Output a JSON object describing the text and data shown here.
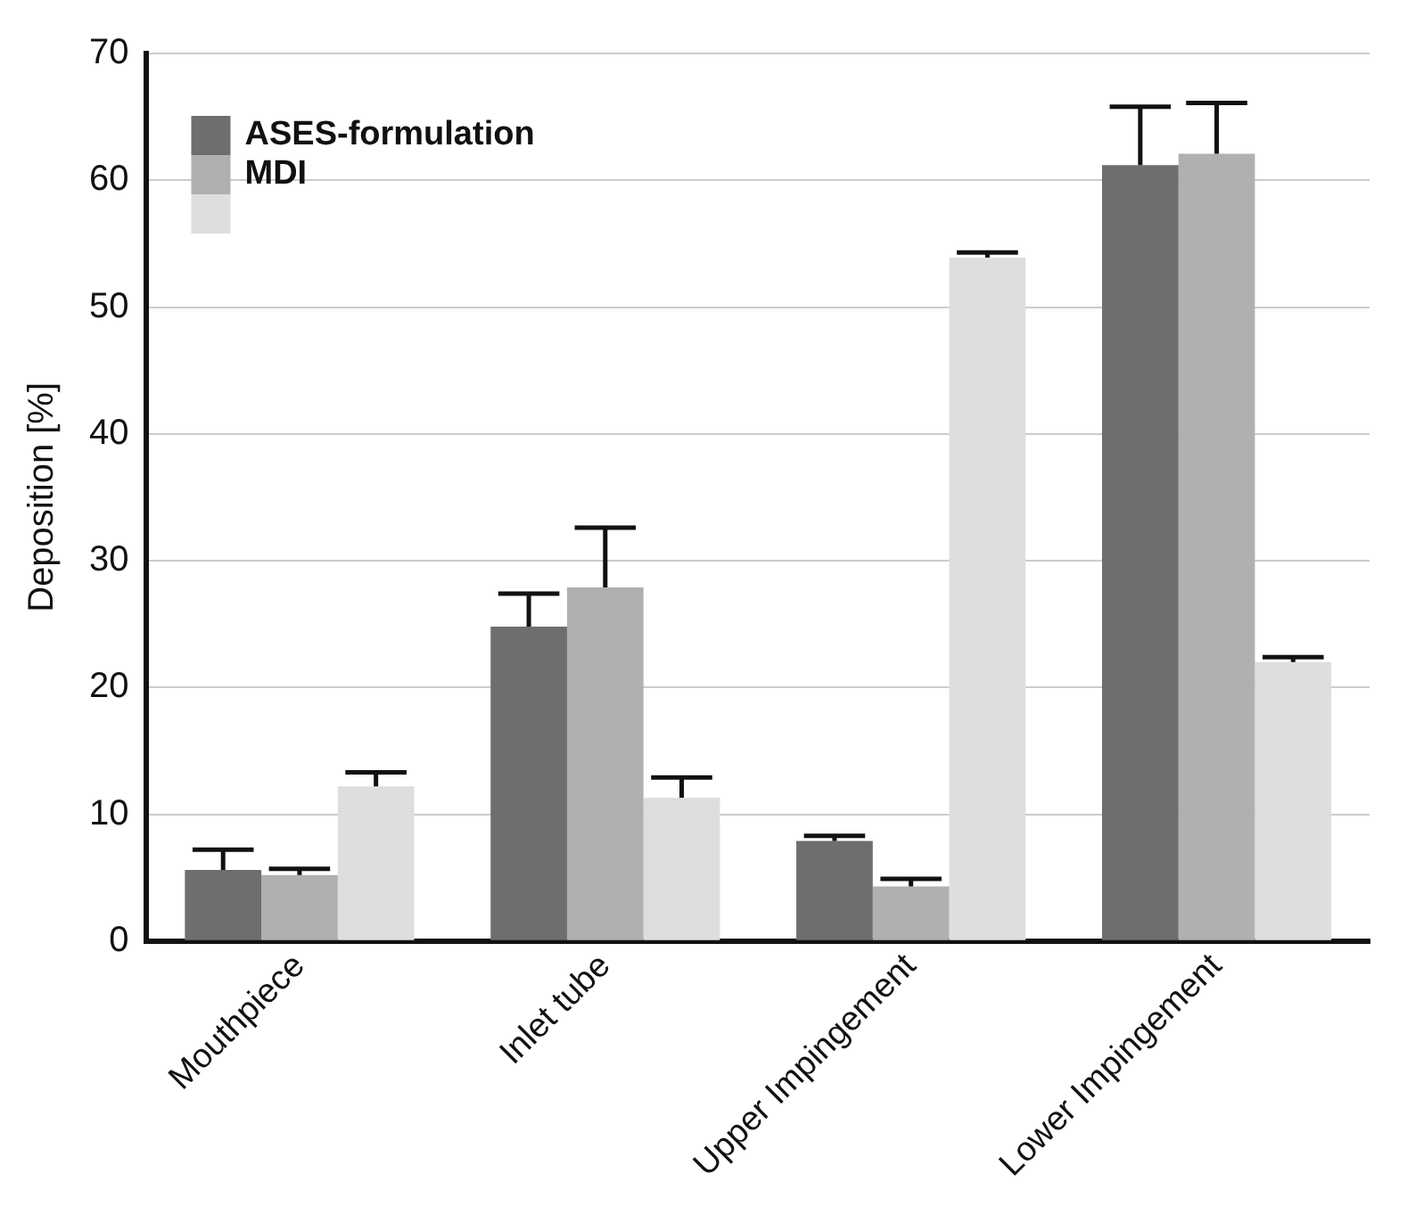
{
  "chart_data": {
    "type": "bar",
    "ylabel": "Deposition [%]",
    "categories": [
      "Mouthpiece",
      "Inlet tube",
      "Upper Impingement",
      "Lower Impingement"
    ],
    "series": [
      {
        "name": "ASES-formulation",
        "color": "#6e6e6e",
        "values": [
          5.6,
          24.8,
          7.9,
          61.2
        ],
        "errors": [
          [
            5.6,
            7.2
          ],
          [
            24.8,
            27.4
          ],
          [
            7.9,
            8.3
          ],
          [
            61.2,
            65.8
          ]
        ]
      },
      {
        "name": "MDI",
        "color": "#b0b0b0",
        "values": [
          5.2,
          27.9,
          4.3,
          62.1
        ],
        "errors": [
          [
            5.2,
            5.7
          ],
          [
            27.9,
            32.6
          ],
          [
            4.3,
            4.9
          ],
          [
            62.1,
            66.1
          ]
        ]
      },
      {
        "color": "#dedede",
        "values": [
          12.2,
          11.3,
          53.9,
          22.0
        ],
        "errors": [
          [
            12.2,
            13.3
          ],
          [
            11.3,
            12.9
          ],
          [
            53.9,
            54.3
          ],
          [
            22.0,
            22.4
          ]
        ]
      }
    ],
    "ylim": [
      0,
      70
    ],
    "yticks": [
      0,
      10,
      20,
      30,
      40,
      50,
      60,
      70
    ],
    "grid": "y",
    "legend": "top left"
  }
}
